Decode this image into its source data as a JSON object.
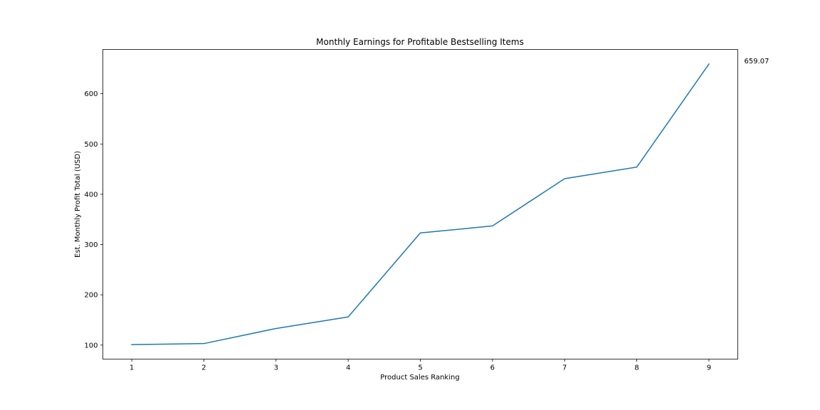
{
  "chart_data": {
    "type": "line",
    "title": "Monthly Earnings for Profitable Bestselling Items",
    "xlabel": "Product Sales Ranking",
    "ylabel": "Est. Monthly Profit Total (USD)",
    "x": [
      1,
      2,
      3,
      4,
      5,
      6,
      7,
      8,
      9
    ],
    "series": [
      {
        "values": [
          101,
          103,
          133,
          156,
          323,
          337,
          431,
          454,
          659.07
        ],
        "color": "#1f77b4"
      }
    ],
    "xlim": [
      0.6,
      9.4
    ],
    "ylim": [
      72.1,
      688.0
    ],
    "xticks": [
      1,
      2,
      3,
      4,
      5,
      6,
      7,
      8,
      9
    ],
    "yticks": [
      100,
      200,
      300,
      400,
      500,
      600
    ],
    "annotations": [
      {
        "text": "659.07",
        "x": 9,
        "y": 659.07
      }
    ],
    "grid": false
  }
}
